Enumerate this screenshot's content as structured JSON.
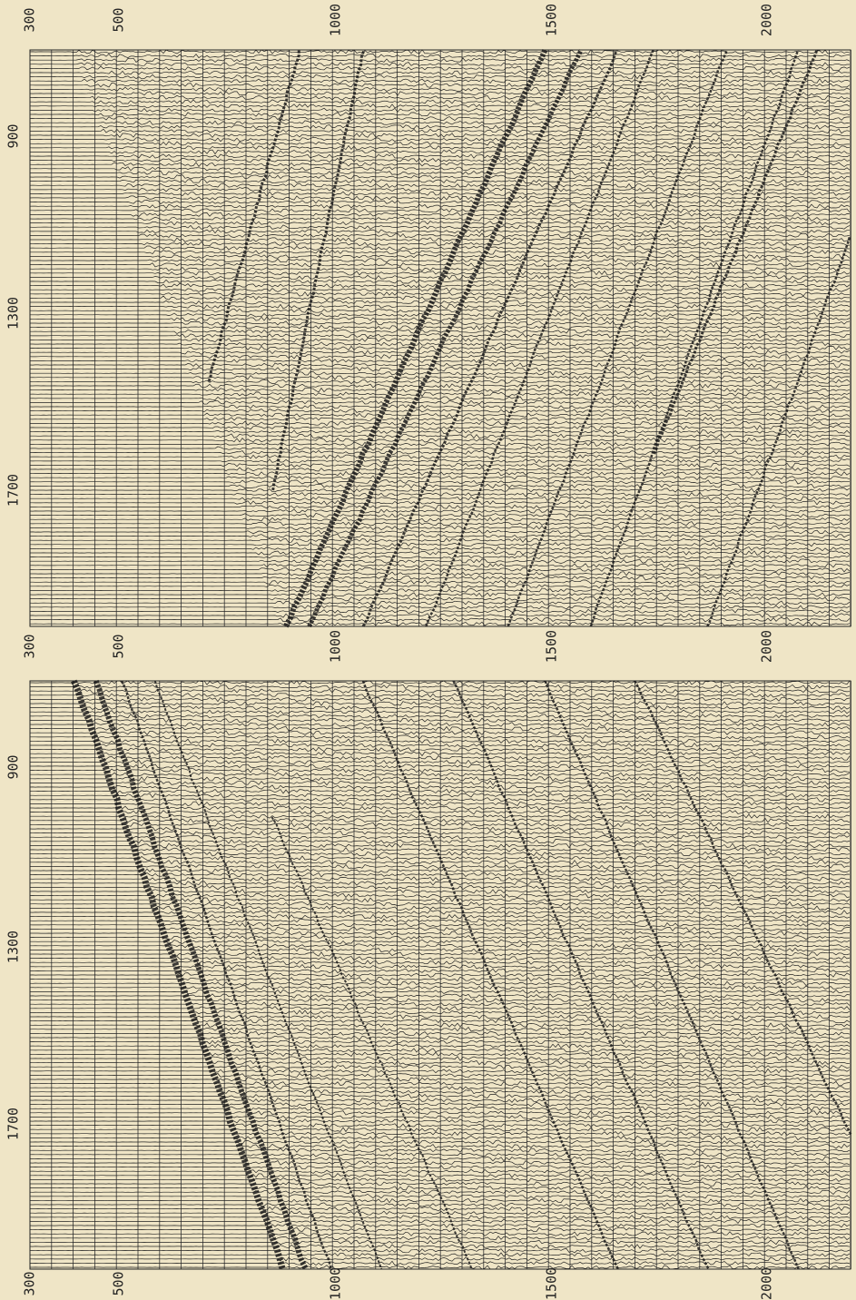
{
  "label_rows": [
    [
      300,
      500,
      1000,
      1500,
      2000
    ],
    [
      300,
      500,
      1000,
      1500,
      2000
    ],
    [
      300,
      500,
      1000,
      1500,
      2000
    ]
  ],
  "panels": [
    {
      "side_labels": [
        900,
        1300,
        1700
      ]
    },
    {
      "side_labels": [
        900,
        1300,
        1700
      ]
    }
  ]
}
